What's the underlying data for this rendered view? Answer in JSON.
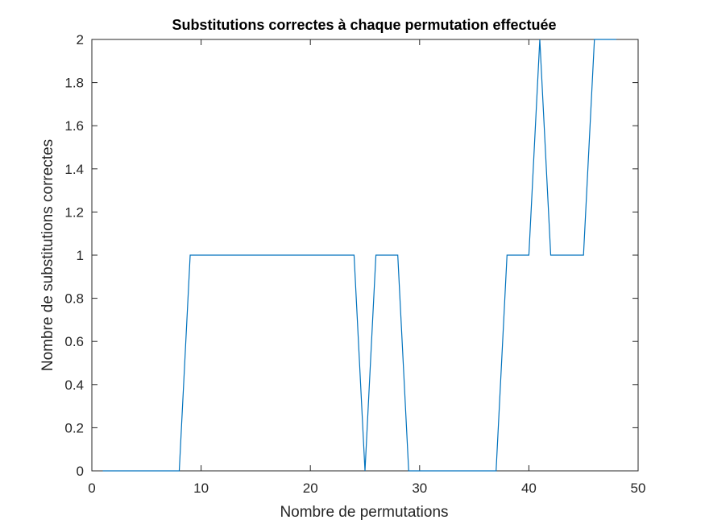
{
  "chart_data": {
    "type": "line",
    "title": "Substitutions correctes à chaque permutation effectuée",
    "xlabel": "Nombre de permutations",
    "ylabel": "Nombre de substitutions correctes",
    "xlim": [
      0,
      50
    ],
    "ylim": [
      0,
      2
    ],
    "xticks": [
      0,
      10,
      20,
      30,
      40,
      50
    ],
    "xtick_labels": [
      "0",
      "10",
      "20",
      "30",
      "40",
      "50"
    ],
    "yticks": [
      0,
      0.2,
      0.4,
      0.6,
      0.8,
      1,
      1.2,
      1.4,
      1.6,
      1.8,
      2
    ],
    "ytick_labels": [
      "0",
      "0.2",
      "0.4",
      "0.6",
      "0.8",
      "1",
      "1.2",
      "1.4",
      "1.6",
      "1.8",
      "2"
    ],
    "grid": false,
    "line_color": "#0072BD",
    "series": [
      {
        "x": [
          1,
          2,
          3,
          4,
          5,
          6,
          7,
          8,
          9,
          10,
          11,
          12,
          13,
          14,
          15,
          16,
          17,
          18,
          19,
          20,
          21,
          22,
          23,
          24,
          25,
          26,
          27,
          28,
          29,
          30,
          31,
          32,
          33,
          34,
          35,
          36,
          37,
          38,
          39,
          40,
          41,
          42,
          43,
          44,
          45,
          46,
          47,
          48
        ],
        "values": [
          0,
          0,
          0,
          0,
          0,
          0,
          0,
          0,
          1,
          1,
          1,
          1,
          1,
          1,
          1,
          1,
          1,
          1,
          1,
          1,
          1,
          1,
          1,
          1,
          0,
          1,
          1,
          1,
          0,
          0,
          0,
          0,
          0,
          0,
          0,
          0,
          0,
          1,
          1,
          1,
          2,
          1,
          1,
          1,
          1,
          2,
          2,
          2
        ]
      }
    ]
  }
}
